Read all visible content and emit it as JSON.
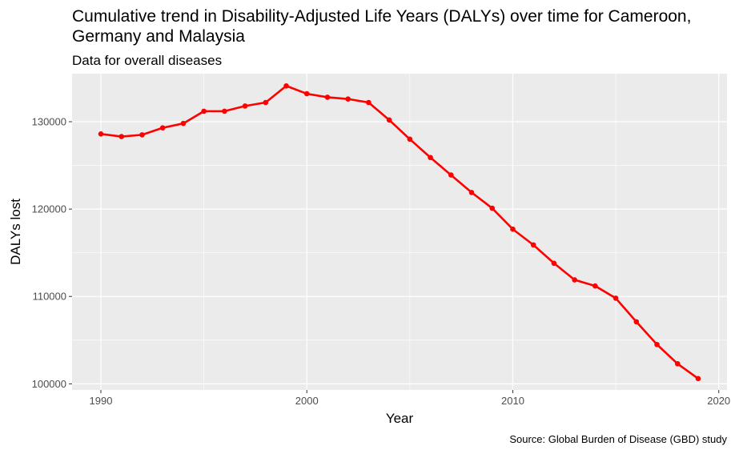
{
  "chart_data": {
    "type": "line",
    "title": "Cumulative trend in Disability-Adjusted Life Years (DALYs) over time for Cameroon, Germany and Malaysia",
    "subtitle": "Data for overall diseases",
    "caption": "Source: Global Burden of Disease (GBD) study",
    "xlabel": "Year",
    "ylabel": "DALYs lost",
    "xlim": [
      1988.6,
      2020.4
    ],
    "ylim": [
      99300,
      135500
    ],
    "x_ticks": [
      1990,
      2000,
      2010,
      2020
    ],
    "y_ticks": [
      100000,
      110000,
      120000,
      130000
    ],
    "grid": true,
    "line_color": "#ff0000",
    "panel_color": "#ebebeb",
    "grid_color": "#ffffff",
    "series": [
      {
        "x": [
          1990,
          1991,
          1992,
          1993,
          1994,
          1995,
          1996,
          1997,
          1998,
          1999,
          2000,
          2001,
          2002,
          2003,
          2004,
          2005,
          2006,
          2007,
          2008,
          2009,
          2010,
          2011,
          2012,
          2013,
          2014,
          2015,
          2016,
          2017,
          2018,
          2019
        ],
        "values": [
          128600,
          128300,
          128500,
          129300,
          129800,
          131200,
          131200,
          131800,
          132200,
          134100,
          133200,
          132800,
          132600,
          132200,
          130200,
          128000,
          125900,
          123900,
          121900,
          120100,
          117700,
          115900,
          113800,
          111900,
          111200,
          109800,
          107100,
          104500,
          102300,
          100600
        ]
      }
    ]
  }
}
